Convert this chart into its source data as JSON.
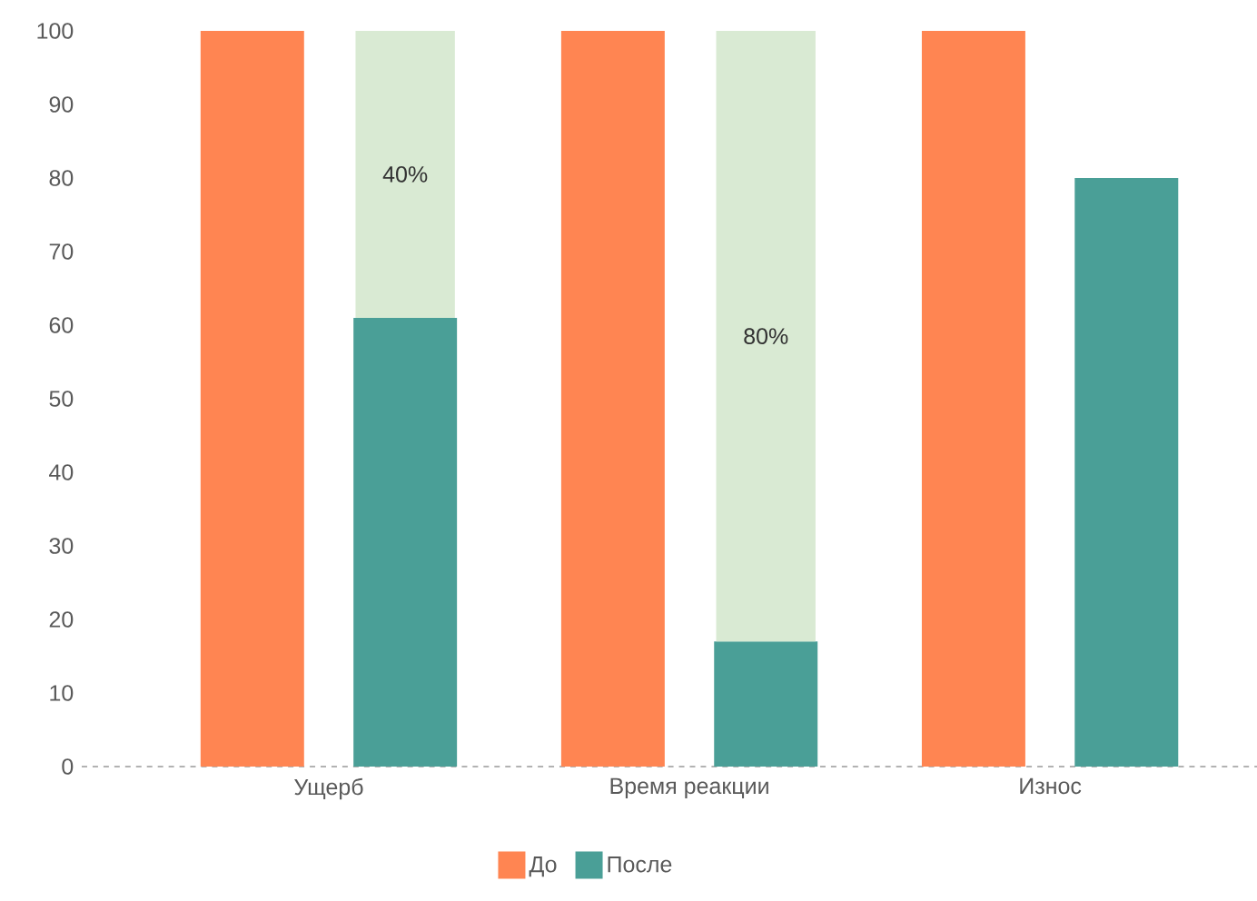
{
  "chart_data": {
    "type": "bar",
    "categories": [
      "Ущерб",
      "Время реакции",
      "Износ"
    ],
    "series": [
      {
        "name": "До",
        "color": "#ff8552",
        "values": [
          100,
          100,
          100
        ]
      },
      {
        "name": "После",
        "color": "#4a9f97",
        "values": [
          61,
          17,
          80
        ]
      },
      {
        "color": "#d9ead3",
        "values": [
          39,
          83,
          null
        ],
        "base": [
          61,
          17,
          null
        ]
      }
    ],
    "ylim": [
      0,
      100
    ],
    "yticks": [
      0,
      10,
      20,
      30,
      40,
      50,
      60,
      70,
      80,
      90,
      100
    ],
    "annotations": [
      "40%",
      "80%"
    ],
    "legend": "bottom",
    "grid": false
  }
}
